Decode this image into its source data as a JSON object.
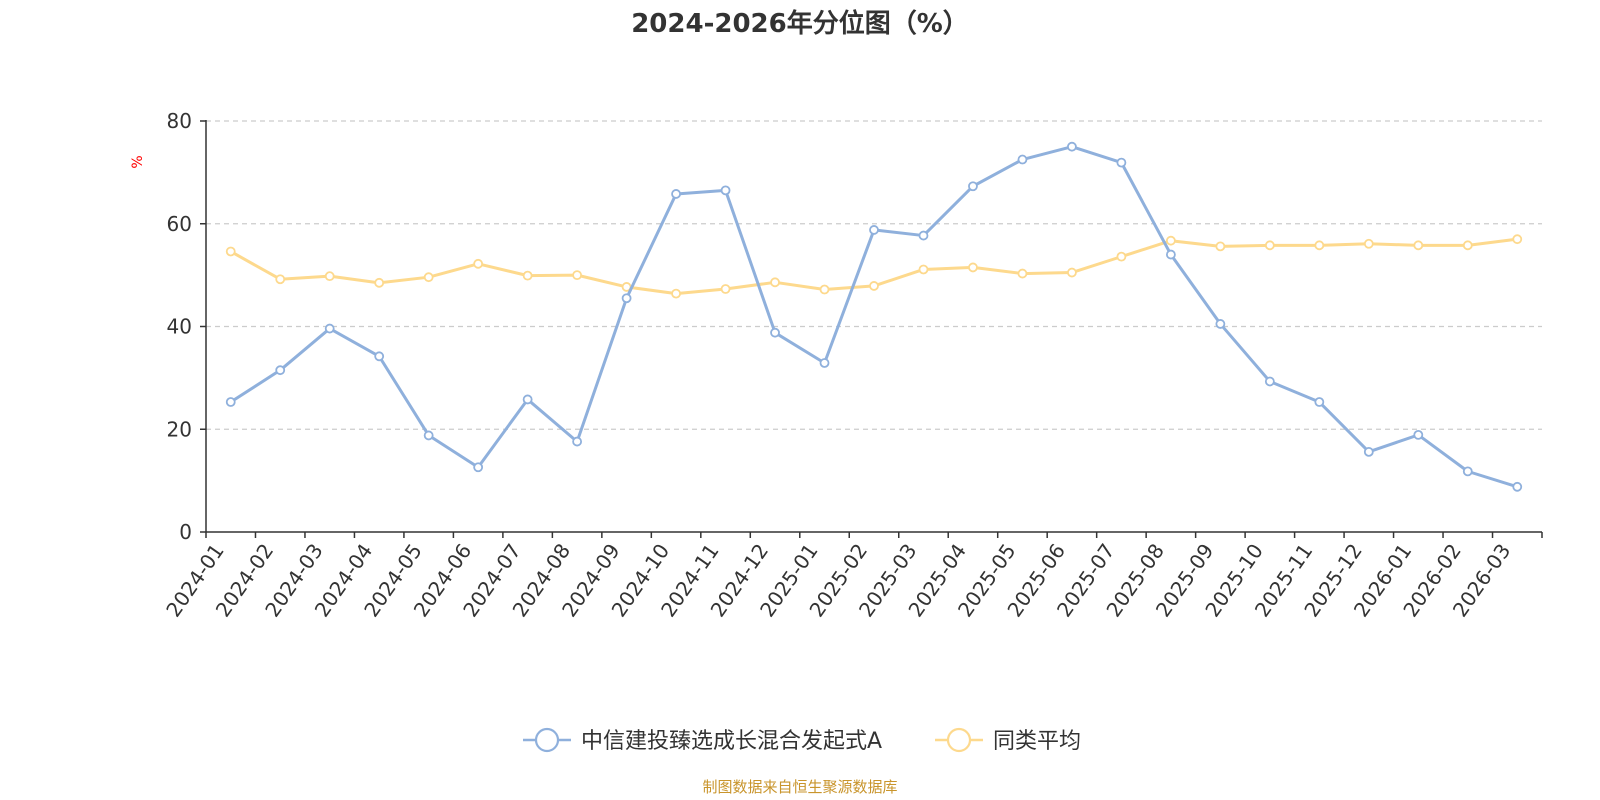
{
  "chart_data": {
    "type": "line",
    "title": "2024-2026年分位图（%）",
    "ylabel": "%",
    "xlabel": "",
    "ylim": [
      0,
      80
    ],
    "yticks": [
      0,
      20,
      40,
      60,
      80
    ],
    "grid": true,
    "legend_position": "bottom-center",
    "categories": [
      "2024-01",
      "2024-02",
      "2024-03",
      "2024-04",
      "2024-05",
      "2024-06",
      "2024-07",
      "2024-08",
      "2024-09",
      "2024-10",
      "2024-11",
      "2024-12",
      "2025-01",
      "2025-02",
      "2025-03",
      "2025-04",
      "2025-05",
      "2025-06",
      "2025-07",
      "2025-08",
      "2025-09",
      "2025-10",
      "2025-11",
      "2025-12",
      "2026-01",
      "2026-02",
      "2026-03"
    ],
    "series": [
      {
        "name": "中信建投臻选成长混合发起式A",
        "color": "#8fb0dc",
        "values": [
          25.3,
          31.5,
          39.6,
          34.2,
          18.8,
          12.6,
          25.8,
          17.6,
          45.5,
          65.8,
          66.5,
          38.8,
          32.9,
          58.8,
          57.7,
          67.3,
          72.5,
          75.0,
          71.9,
          54.0,
          40.5,
          29.3,
          25.3,
          15.6,
          18.9,
          11.8,
          8.8
        ]
      },
      {
        "name": "同类平均",
        "color": "#fdd98d",
        "values": [
          54.6,
          49.2,
          49.8,
          48.5,
          49.6,
          52.2,
          49.9,
          50.0,
          47.7,
          46.4,
          47.3,
          48.6,
          47.2,
          47.9,
          51.1,
          51.5,
          50.3,
          50.5,
          53.6,
          56.7,
          55.6,
          55.8,
          55.8,
          56.1,
          55.8,
          55.8,
          57.0
        ]
      }
    ]
  },
  "footer": {
    "source": "制图数据来自恒生聚源数据库"
  },
  "colors": {
    "axis": "#333333",
    "grid": "#cccccc",
    "ylabel": "#ff0000",
    "footer": "#c9952c"
  }
}
